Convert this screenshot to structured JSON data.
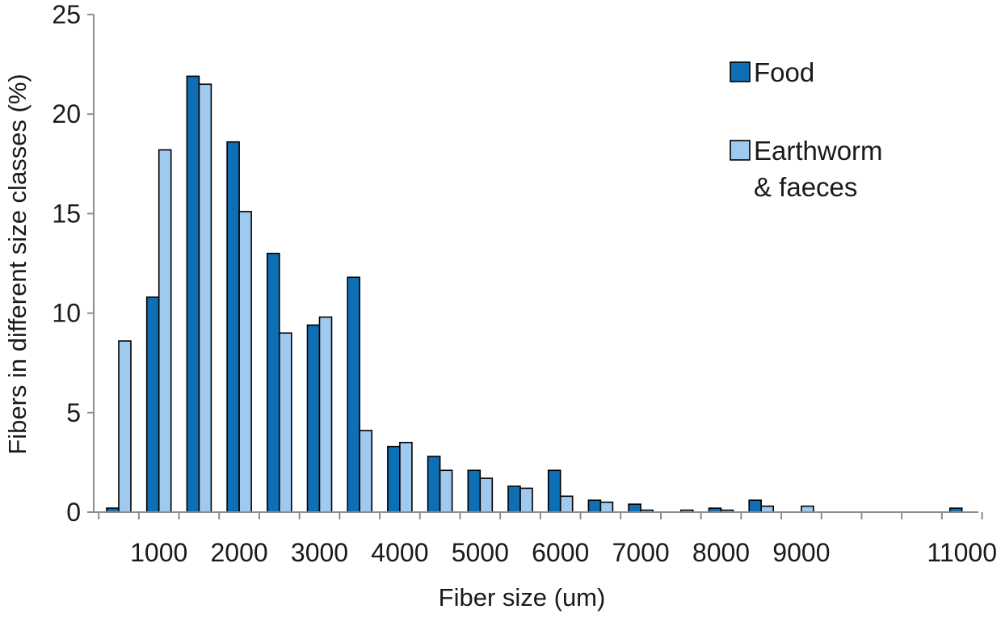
{
  "chart_data": {
    "type": "bar",
    "xlabel": "Fiber size (um)",
    "ylabel": "Fibers in different size classes (%)",
    "ylim": [
      0,
      25
    ],
    "yticks": [
      "0",
      "5",
      "10",
      "15",
      "20",
      "25"
    ],
    "grid": false,
    "legend_position": "top-right",
    "categories": [
      "500",
      "1000",
      "1500",
      "2000",
      "2500",
      "3000",
      "3500",
      "4000",
      "4500",
      "5000",
      "5500",
      "6000",
      "6500",
      "7000",
      "7500",
      "8000",
      "8500",
      "9000",
      "9500",
      "10000",
      "10500",
      "11000"
    ],
    "tick_labels": [
      "",
      "1000",
      "",
      "2000",
      "",
      "3000",
      "",
      "4000",
      "",
      "5000",
      "",
      "6000",
      "",
      "7000",
      "",
      "8000",
      "",
      "9000",
      "",
      "",
      "",
      "11000"
    ],
    "series": [
      {
        "name": "Food",
        "color": "#0e6fb5",
        "values": [
          0.2,
          10.8,
          21.9,
          18.6,
          13.0,
          9.4,
          11.8,
          3.3,
          2.8,
          2.1,
          1.3,
          2.1,
          0.6,
          0.4,
          0.0,
          0.2,
          0.6,
          0.0,
          0.0,
          0.0,
          0.0,
          0.2
        ]
      },
      {
        "name": "Earthworm & faeces",
        "legend_lines": [
          "Earthworm",
          "& faeces"
        ],
        "color": "#9fc9ee",
        "values": [
          8.6,
          18.2,
          21.5,
          15.1,
          9.0,
          9.8,
          4.1,
          3.5,
          2.1,
          1.7,
          1.2,
          0.8,
          0.5,
          0.1,
          0.1,
          0.1,
          0.3,
          0.3,
          0.0,
          0.0,
          0.0,
          0.0
        ]
      }
    ]
  }
}
